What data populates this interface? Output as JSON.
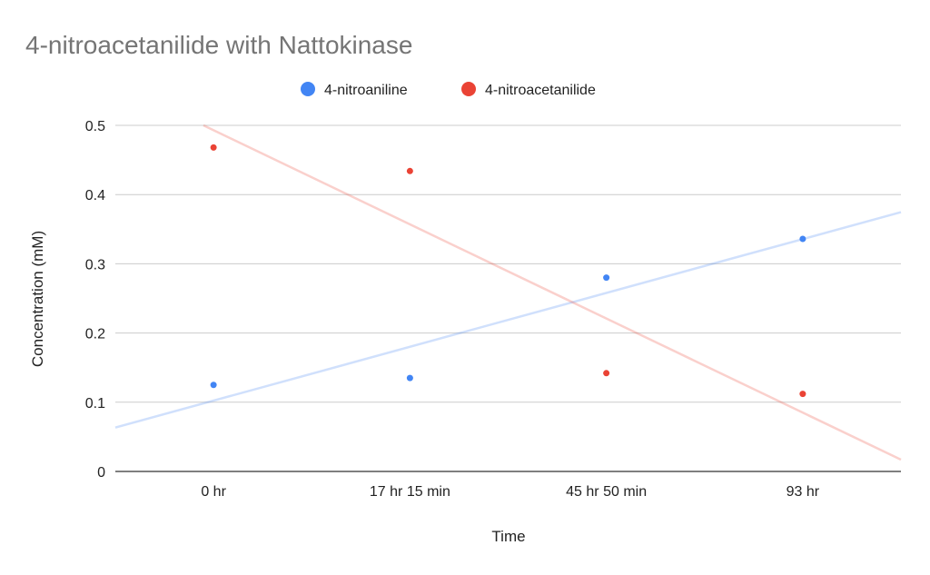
{
  "chart_data": {
    "type": "scatter",
    "title": "4-nitroacetanilide with Nattokinase",
    "xlabel": "Time",
    "ylabel": "Concentration (mM)",
    "categories": [
      "0 hr",
      "17 hr 15 min",
      "45 hr 50 min",
      "93 hr"
    ],
    "ylim": [
      0,
      0.5
    ],
    "yticks": [
      "0",
      "0.1",
      "0.2",
      "0.3",
      "0.4",
      "0.5"
    ],
    "grid": true,
    "legend_position": "top",
    "series": [
      {
        "name": "4-nitroaniline",
        "color": "#4285f4",
        "values": [
          0.125,
          0.135,
          0.28,
          0.336
        ],
        "trendline": true
      },
      {
        "name": "4-nitroacetanilide",
        "color": "#ea4335",
        "values": [
          0.468,
          0.434,
          0.142,
          0.112
        ],
        "trendline": true
      }
    ]
  }
}
